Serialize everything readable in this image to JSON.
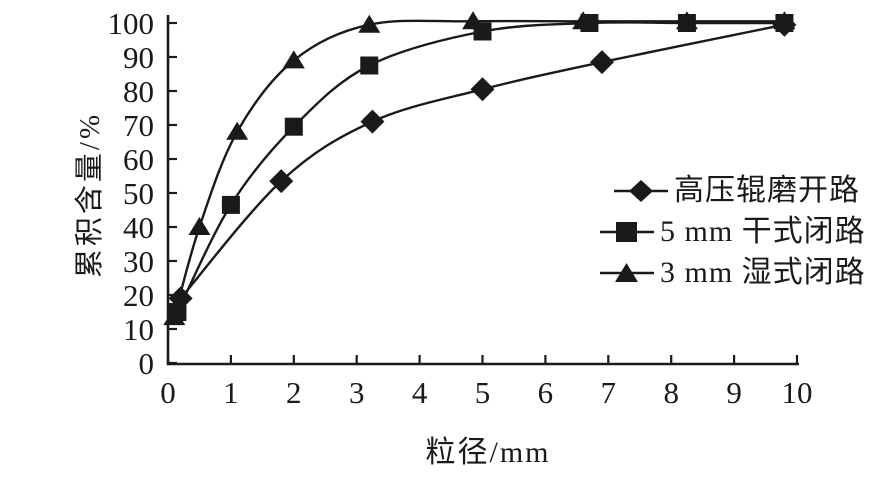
{
  "chart_data": {
    "type": "line",
    "title": "",
    "xlabel": "粒径/mm",
    "ylabel": "累积含量/%",
    "xlim": [
      0,
      10
    ],
    "ylim": [
      0,
      100
    ],
    "x_ticks": [
      0,
      1,
      2,
      3,
      4,
      5,
      6,
      7,
      8,
      9,
      10
    ],
    "y_ticks": [
      0,
      10,
      20,
      30,
      40,
      50,
      60,
      70,
      80,
      90,
      100
    ],
    "grid": false,
    "legend_position": "right-middle",
    "background": "#ffffff",
    "line_color": "#1a1a1a",
    "text_color": "#1a1a1a",
    "series": [
      {
        "name": "高压辊磨开路",
        "marker": "diamond",
        "color": "#1a1a1a",
        "points": [
          [
            0.2,
            19
          ],
          [
            1.8,
            53.5
          ],
          [
            3.25,
            71
          ],
          [
            5,
            80.5
          ],
          [
            6.9,
            88.5
          ],
          [
            9.8,
            99.5
          ]
        ]
      },
      {
        "name": "5 mm 干式闭路",
        "marker": "square",
        "color": "#1a1a1a",
        "points": [
          [
            0.15,
            15
          ],
          [
            1,
            46.5
          ],
          [
            2,
            69.5
          ],
          [
            3.2,
            87.5
          ],
          [
            5,
            97.5
          ],
          [
            6.7,
            100
          ],
          [
            8.25,
            100
          ],
          [
            9.8,
            100
          ]
        ]
      },
      {
        "name": "3 mm 湿式闭路",
        "marker": "triangle",
        "color": "#1a1a1a",
        "points": [
          [
            0.1,
            13.5
          ],
          [
            0.5,
            40
          ],
          [
            1.1,
            68
          ],
          [
            2,
            89
          ],
          [
            3.2,
            99.5
          ],
          [
            4.85,
            100.5
          ],
          [
            6.6,
            100.5
          ],
          [
            8.25,
            100.5
          ],
          [
            9.8,
            100.5
          ]
        ]
      }
    ]
  }
}
